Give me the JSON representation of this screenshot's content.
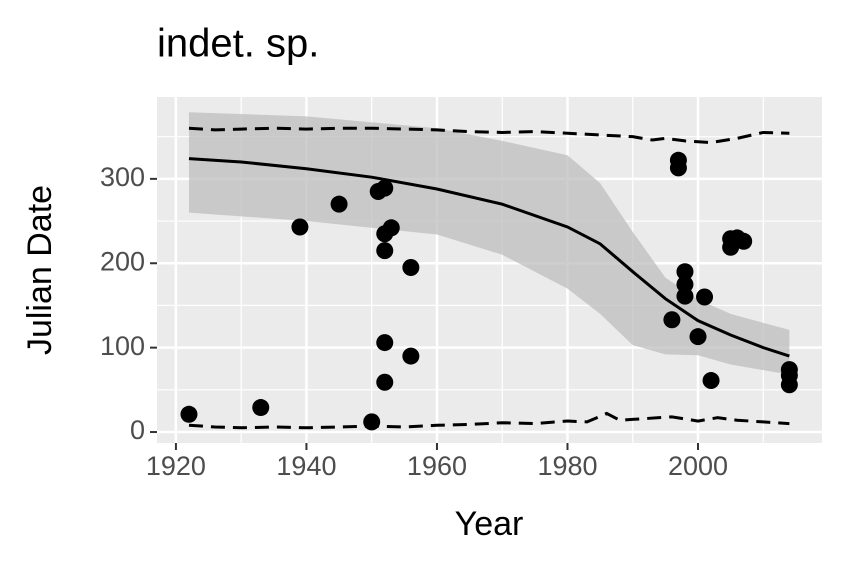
{
  "chart_data": {
    "type": "scatter",
    "title": "indet. sp.",
    "x_label": "Year",
    "y_label": "Julian Date",
    "xlim": [
      1917.1,
      2019.0
    ],
    "ylim": [
      -13,
      397
    ],
    "xticks": [
      1920,
      1940,
      1960,
      1980,
      2000
    ],
    "yticks": [
      0,
      100,
      200,
      300
    ],
    "grid": true,
    "points": {
      "color": "#000000",
      "x": [
        1922,
        1933,
        1939,
        1945,
        1950,
        1951,
        1952,
        1952,
        1953,
        1952,
        1952,
        1952,
        1956,
        1956,
        1996,
        1997,
        1997,
        1998,
        1998,
        1998,
        2000,
        2001,
        2002,
        2005,
        2005,
        2006,
        2007,
        2014,
        2014,
        2014
      ],
      "y": [
        21,
        29,
        243,
        270,
        12,
        285,
        289,
        235,
        242,
        215,
        106,
        59,
        195,
        90,
        133,
        322,
        313,
        190,
        175,
        161,
        113,
        160,
        61,
        219,
        229,
        230,
        226,
        74,
        67,
        56
      ]
    },
    "fit": {
      "color": "#000000",
      "x": [
        1922,
        1930,
        1940,
        1950,
        1960,
        1970,
        1980,
        1985,
        1990,
        1995,
        2000,
        2005,
        2010,
        2014
      ],
      "values": [
        324,
        320,
        312,
        302,
        288,
        270,
        243,
        223,
        190,
        158,
        132,
        115,
        100,
        90
      ]
    },
    "band": {
      "color": "#bdbdbd",
      "x": [
        1922,
        1940,
        1960,
        1970,
        1980,
        1985,
        1990,
        1995,
        2000,
        2005,
        2014
      ],
      "upper": [
        379,
        374,
        360,
        345,
        328,
        295,
        237,
        183,
        157,
        140,
        121
      ],
      "lower": [
        260,
        250,
        234,
        210,
        170,
        140,
        103,
        92,
        91,
        80,
        68
      ]
    },
    "quantile_upper": {
      "color": "#000000",
      "x": [
        1922,
        1926,
        1930,
        1935,
        1940,
        1945,
        1950,
        1955,
        1960,
        1965,
        1970,
        1975,
        1980,
        1985,
        1990,
        1993,
        1995,
        1998,
        2002,
        2006,
        2010,
        2014
      ],
      "values": [
        360,
        358,
        359,
        360,
        359,
        360,
        360,
        359,
        358,
        356,
        355,
        356,
        354,
        352,
        350,
        346,
        348,
        345,
        343,
        348,
        355,
        354
      ]
    },
    "quantile_lower": {
      "color": "#000000",
      "x": [
        1922,
        1926,
        1930,
        1935,
        1940,
        1945,
        1950,
        1955,
        1960,
        1965,
        1970,
        1975,
        1980,
        1983,
        1986,
        1988,
        1992,
        1996,
        2000,
        2003,
        2006,
        2010,
        2014
      ],
      "values": [
        8,
        6,
        5,
        6,
        5,
        6,
        7,
        6,
        8,
        9,
        11,
        10,
        13,
        12,
        22,
        14,
        16,
        18,
        13,
        17,
        14,
        12,
        10
      ]
    }
  }
}
